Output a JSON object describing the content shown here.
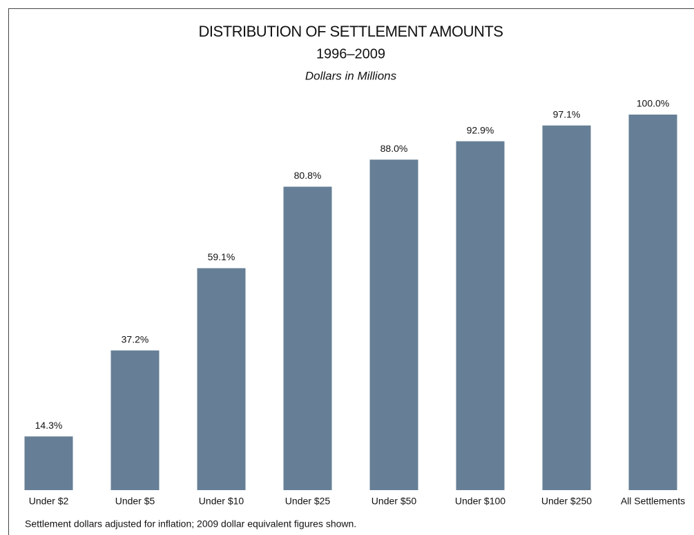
{
  "chart_data": {
    "type": "bar",
    "title": "DISTRIBUTION OF SETTLEMENT AMOUNTS",
    "subtitle": "1996–2009",
    "unit_note": "Dollars in Millions",
    "categories": [
      "Under $2",
      "Under $5",
      "Under $10",
      "Under $25",
      "Under $50",
      "Under $100",
      "Under $250",
      "All Settlements"
    ],
    "values": [
      14.3,
      37.2,
      59.1,
      80.8,
      88.0,
      92.9,
      97.1,
      100.0
    ],
    "value_labels": [
      "14.3%",
      "37.2%",
      "59.1%",
      "80.8%",
      "88.0%",
      "92.9%",
      "97.1%",
      "100.0%"
    ],
    "color": "#667f96",
    "footnote": "Settlement dollars adjusted for inflation; 2009 dollar equivalent figures shown."
  }
}
